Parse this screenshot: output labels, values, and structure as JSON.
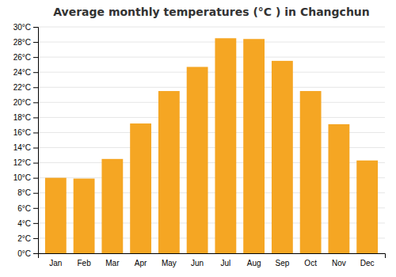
{
  "chart_data": {
    "type": "bar",
    "title": "Average monthly temperatures (°C ) in Changchun",
    "categories": [
      "Jan",
      "Feb",
      "Mar",
      "Apr",
      "May",
      "Jun",
      "Jul",
      "Aug",
      "Sep",
      "Oct",
      "Nov",
      "Dec"
    ],
    "values": [
      10.0,
      9.9,
      12.5,
      17.2,
      21.5,
      24.7,
      28.5,
      28.4,
      25.5,
      21.5,
      17.1,
      12.3
    ],
    "color": "#F5A623",
    "ylim": [
      0,
      30
    ],
    "yticks": [
      {
        "value": 0,
        "label": "0°C"
      },
      {
        "value": 2,
        "label": "2°C"
      },
      {
        "value": 4,
        "label": "4°C"
      },
      {
        "value": 6,
        "label": "6°C"
      },
      {
        "value": 8,
        "label": "8°C"
      },
      {
        "value": 10,
        "label": "10°C"
      },
      {
        "value": 12,
        "label": "12°C"
      },
      {
        "value": 14,
        "label": "14°C"
      },
      {
        "value": 16,
        "label": "16°C"
      },
      {
        "value": 18,
        "label": "18°C"
      },
      {
        "value": 20,
        "label": "20°C"
      },
      {
        "value": 22,
        "label": "22°C"
      },
      {
        "value": 24,
        "label": "24°C"
      },
      {
        "value": 26,
        "label": "26°C"
      },
      {
        "value": 28,
        "label": "28°C"
      },
      {
        "value": 30,
        "label": "30°C"
      }
    ],
    "grid": true
  }
}
